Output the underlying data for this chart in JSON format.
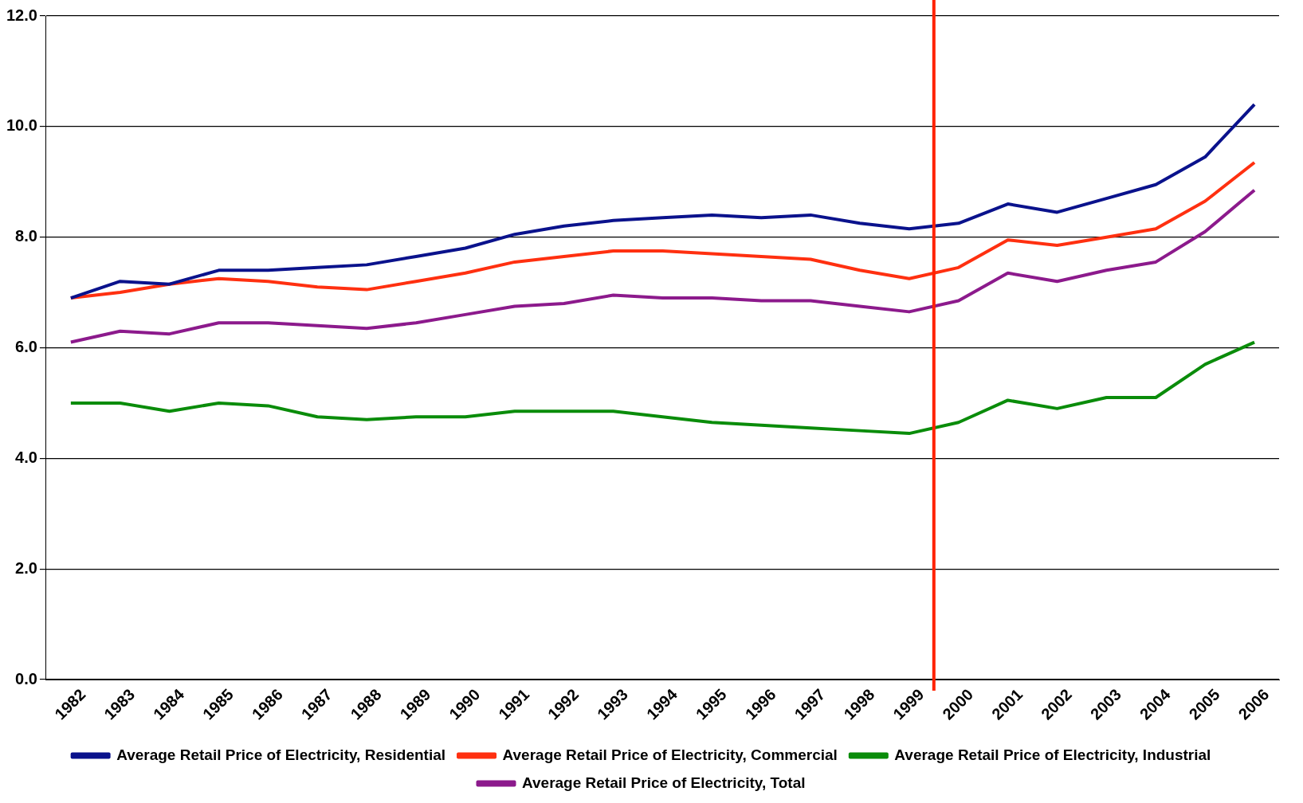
{
  "chart_data": {
    "type": "line",
    "x": [
      1982,
      1983,
      1984,
      1985,
      1986,
      1987,
      1988,
      1989,
      1990,
      1991,
      1992,
      1993,
      1994,
      1995,
      1996,
      1997,
      1998,
      1999,
      2000,
      2001,
      2002,
      2003,
      2004,
      2005,
      2006
    ],
    "xlim": [
      1981.5,
      2006.5
    ],
    "xticks": [
      1982,
      1983,
      1984,
      1985,
      1986,
      1987,
      1988,
      1989,
      1990,
      1991,
      1992,
      1993,
      1994,
      1995,
      1996,
      1997,
      1998,
      1999,
      2000,
      2001,
      2002,
      2003,
      2004,
      2005,
      2006
    ],
    "ylim": [
      0,
      12
    ],
    "yticks": [
      {
        "value": 0,
        "label": "0.0"
      },
      {
        "value": 2,
        "label": "2.0"
      },
      {
        "value": 4,
        "label": "4.0"
      },
      {
        "value": 6,
        "label": "6.0"
      },
      {
        "value": 8,
        "label": "8.0"
      },
      {
        "value": 10,
        "label": "10.0"
      },
      {
        "value": 12,
        "label": "12.0"
      }
    ],
    "grid": "y",
    "legend": "bottom",
    "marker": "none",
    "series": [
      {
        "name": "Average Retail Price of Electricity, Residential",
        "color": "#0a128c",
        "values": [
          6.9,
          7.2,
          7.15,
          7.4,
          7.4,
          7.45,
          7.5,
          7.65,
          7.8,
          8.05,
          8.2,
          8.3,
          8.35,
          8.4,
          8.35,
          8.4,
          8.25,
          8.15,
          8.25,
          8.6,
          8.45,
          8.7,
          8.95,
          9.45,
          10.4
        ]
      },
      {
        "name": "Average Retail Price of Electricity, Commercial",
        "color": "#ff3010",
        "values": [
          6.9,
          7.0,
          7.15,
          7.25,
          7.2,
          7.1,
          7.05,
          7.2,
          7.35,
          7.55,
          7.65,
          7.75,
          7.75,
          7.7,
          7.65,
          7.6,
          7.4,
          7.25,
          7.45,
          7.95,
          7.85,
          8.0,
          8.15,
          8.65,
          9.35
        ]
      },
      {
        "name": "Average Retail Price of Electricity, Industrial",
        "color": "#0a8c0a",
        "values": [
          5.0,
          5.0,
          4.85,
          5.0,
          4.95,
          4.75,
          4.7,
          4.75,
          4.75,
          4.85,
          4.85,
          4.85,
          4.75,
          4.65,
          4.6,
          4.55,
          4.5,
          4.45,
          4.65,
          5.05,
          4.9,
          5.1,
          5.1,
          5.7,
          6.1
        ]
      },
      {
        "name": "Average Retail Price of Electricity, Total",
        "color": "#8c1a8c",
        "values": [
          6.1,
          6.3,
          6.25,
          6.45,
          6.45,
          6.4,
          6.35,
          6.45,
          6.6,
          6.75,
          6.8,
          6.95,
          6.9,
          6.9,
          6.85,
          6.85,
          6.75,
          6.65,
          6.85,
          7.35,
          7.2,
          7.4,
          7.55,
          8.1,
          8.85
        ]
      }
    ],
    "ref_lines": [
      {
        "axis": "x",
        "value": 1999.5,
        "color": "#ff2200"
      }
    ]
  }
}
